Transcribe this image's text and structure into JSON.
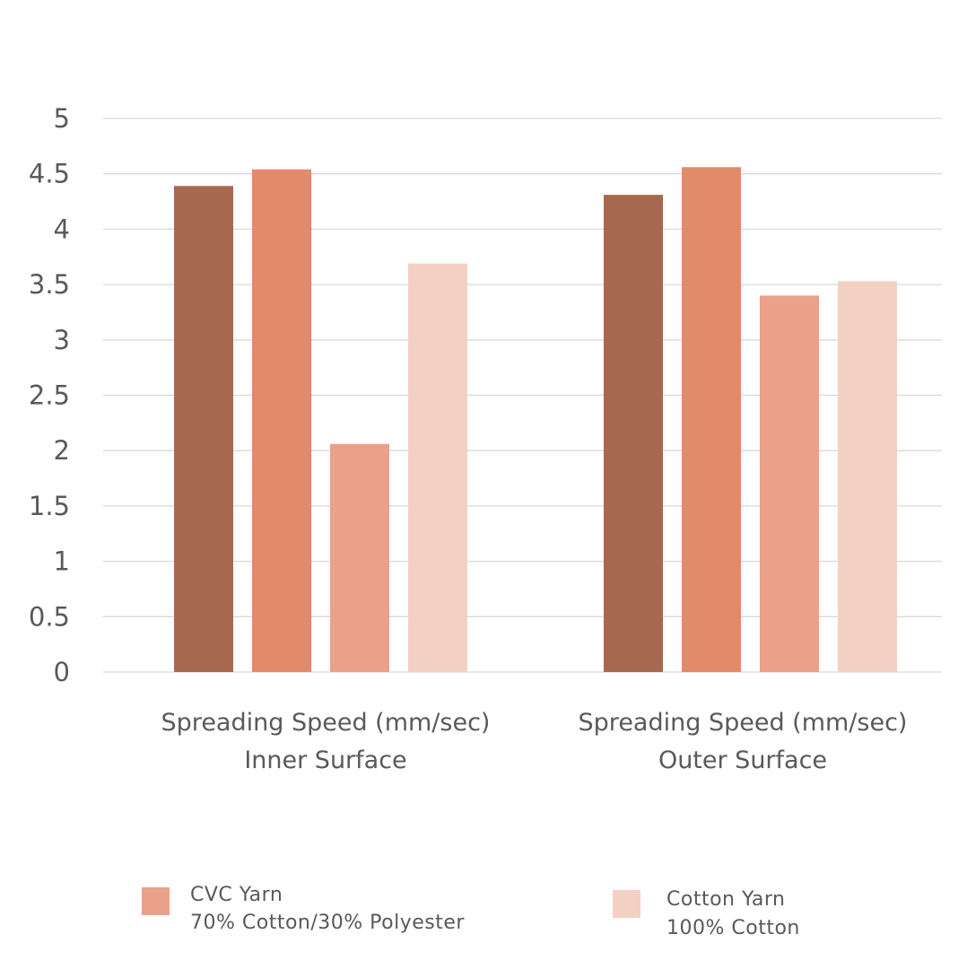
{
  "chart_data": {
    "type": "bar",
    "categories": [
      [
        "Spreading Speed (mm/sec)",
        "Inner Surface"
      ],
      [
        "Spreading Speed (mm/sec)",
        "Outer Surface"
      ]
    ],
    "series": [
      {
        "values": [
          4.39,
          4.31
        ],
        "color": "#a86850"
      },
      {
        "values": [
          4.54,
          4.56
        ],
        "color": "#e38a6b"
      },
      {
        "name": "CVC Yarn\n70% Cotton/30% Polyester",
        "values": [
          2.06,
          3.4
        ],
        "color": "#e9a189"
      },
      {
        "name": "Cotton Yarn\n100% Cotton",
        "values": [
          3.69,
          3.53
        ],
        "color": "#f4d0c4"
      }
    ],
    "ylim": [
      0,
      5
    ],
    "yticks": [
      "0",
      "0.5",
      "1",
      "1.5",
      "2",
      "2.5",
      "3",
      "3.5",
      "4",
      "4.5",
      "5"
    ],
    "grid": true,
    "legend": {
      "position": "bottom",
      "entries": [
        {
          "line1": "CVC Yarn",
          "line2": "70% Cotton/30% Polyester",
          "color": "#e9a189"
        },
        {
          "line1": "Cotton Yarn",
          "line2": "100% Cotton",
          "color": "#f4d0c4"
        }
      ]
    }
  }
}
